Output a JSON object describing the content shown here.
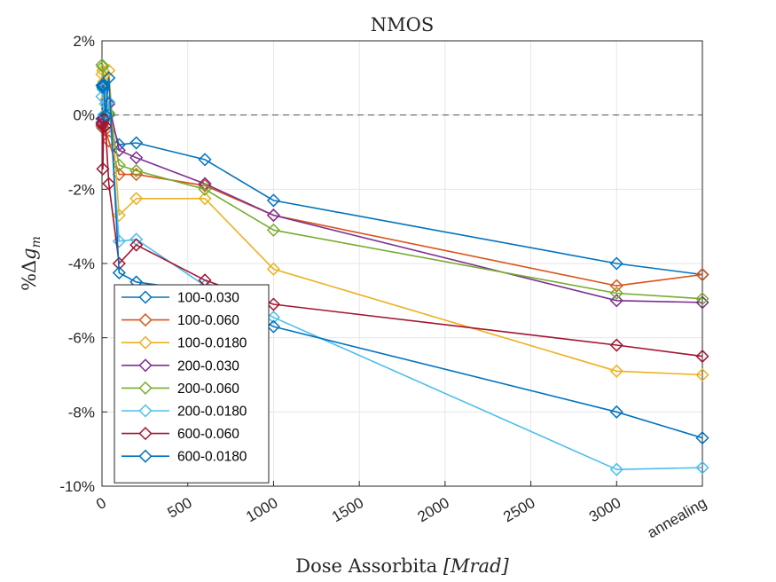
{
  "chart_data": {
    "type": "line",
    "title": "NMOS",
    "xlabel_prefix": "Dose Assorbita ",
    "xlabel_unit": "[Mrad]",
    "ylabel_prefix": "%Δ",
    "ylabel_var": "g",
    "ylabel_sub": "m",
    "x_ticks": [
      0,
      500,
      1000,
      1500,
      2000,
      2500,
      3000,
      3500
    ],
    "x_tick_labels": [
      "0",
      "500",
      "1000",
      "1500",
      "2000",
      "2500",
      "3000",
      "annealing"
    ],
    "y_ticks": [
      -10,
      -8,
      -6,
      -4,
      -2,
      0,
      2
    ],
    "y_tick_labels": [
      "-10%",
      "-8%",
      "-6%",
      "-4%",
      "-2%",
      "0%",
      "2%"
    ],
    "xlim": [
      0,
      3500
    ],
    "ylim": [
      -10,
      2
    ],
    "grid": true,
    "reference_line_y": 0,
    "legend_position": "bottom-left",
    "series": [
      {
        "name": "100-0.030",
        "color": "#0072BD",
        "x": [
          0,
          5,
          10,
          20,
          40,
          100,
          200,
          600,
          1000,
          3000,
          3500
        ],
        "y": [
          -0.1,
          -0.35,
          0.0,
          -0.05,
          0.0,
          -0.8,
          -0.75,
          -1.2,
          -2.3,
          -4.0,
          -4.3
        ]
      },
      {
        "name": "100-0.060",
        "color": "#D95319",
        "x": [
          0,
          5,
          10,
          20,
          40,
          100,
          200,
          600,
          1000,
          3000,
          3500
        ],
        "y": [
          -0.3,
          -0.2,
          -0.35,
          -0.4,
          -0.7,
          -1.6,
          -1.6,
          -1.9,
          -2.7,
          -4.6,
          -4.3
        ]
      },
      {
        "name": "100-0.0180",
        "color": "#EDB120",
        "x": [
          0,
          5,
          10,
          20,
          40,
          100,
          200,
          600,
          1000,
          3000,
          3500
        ],
        "y": [
          1.1,
          1.2,
          0.9,
          0.4,
          1.2,
          -2.7,
          -2.25,
          -2.25,
          -4.15,
          -6.9,
          -7.0
        ]
      },
      {
        "name": "200-0.030",
        "color": "#7E2F8E",
        "x": [
          0,
          5,
          10,
          20,
          40,
          100,
          200,
          600,
          1000,
          3000,
          3500
        ],
        "y": [
          -0.2,
          -0.1,
          0.7,
          0.0,
          0.3,
          -0.95,
          -1.15,
          -1.85,
          -2.7,
          -5.0,
          -5.05
        ]
      },
      {
        "name": "200-0.060",
        "color": "#77AC30",
        "x": [
          0,
          5,
          10,
          20,
          40,
          100,
          200,
          600,
          1000,
          3000,
          3500
        ],
        "y": [
          1.35,
          1.3,
          0.8,
          0.0,
          0.05,
          -1.35,
          -1.5,
          -2.0,
          -3.1,
          -4.8,
          -4.95
        ]
      },
      {
        "name": "200-0.0180",
        "color": "#4DBEEE",
        "x": [
          0,
          5,
          10,
          20,
          40,
          100,
          200,
          600,
          1000,
          3000,
          3500
        ],
        "y": [
          0.5,
          0.7,
          0.0,
          0.3,
          0.35,
          -3.4,
          -3.35,
          -4.6,
          -5.45,
          -9.55,
          -9.5
        ]
      },
      {
        "name": "600-0.060",
        "color": "#A2142F",
        "x": [
          0,
          5,
          10,
          20,
          40,
          100,
          200,
          600,
          1000,
          3000,
          3500
        ],
        "y": [
          -0.25,
          -1.45,
          -0.1,
          -0.3,
          -1.85,
          -4.0,
          -3.5,
          -4.45,
          -5.1,
          -6.2,
          -6.5
        ]
      },
      {
        "name": "600-0.0180",
        "color": "#0072BD",
        "x": [
          0,
          5,
          10,
          20,
          40,
          100,
          200,
          600,
          1000,
          3000,
          3500
        ],
        "y": [
          0.8,
          0.75,
          0.8,
          0.0,
          1.0,
          -4.25,
          -4.5,
          -4.75,
          -5.7,
          -8.0,
          -8.7
        ]
      }
    ]
  }
}
